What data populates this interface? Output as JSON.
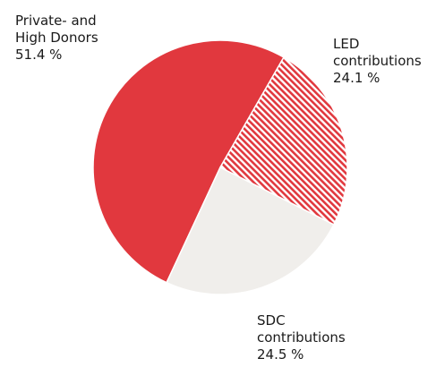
{
  "chart_data": {
    "type": "pie",
    "slices": [
      {
        "lines": [
          "Private- and",
          "High Donors"
        ],
        "value_label": "51.4 %",
        "value": 51.4,
        "color": "#e1383e",
        "pattern": "solid"
      },
      {
        "lines": [
          "LED",
          "contributions"
        ],
        "value_label": "24.1 %",
        "value": 24.1,
        "color": "#e1383e",
        "pattern": "hatched"
      },
      {
        "lines": [
          "SDC",
          "contributions"
        ],
        "value_label": "24.5 %",
        "value": 24.5,
        "color": "#f0eeeb",
        "pattern": "solid"
      }
    ]
  }
}
